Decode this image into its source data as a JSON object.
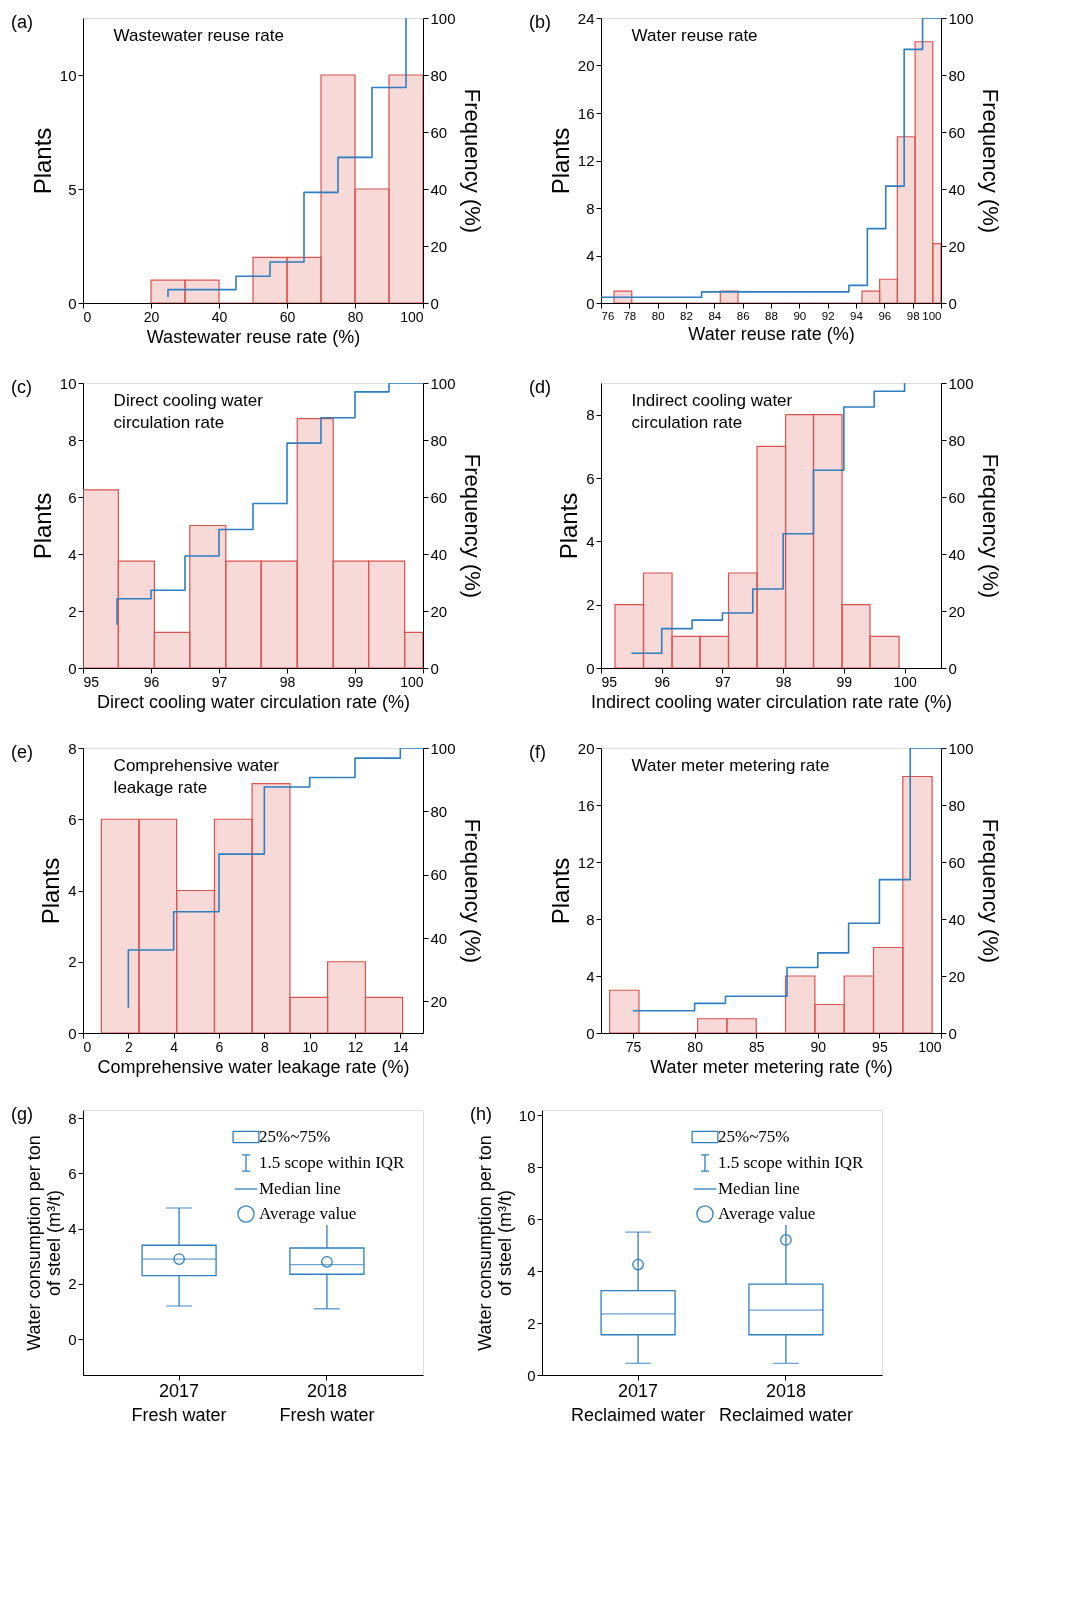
{
  "chart_data": [
    {
      "type": "histogram",
      "title": "Wastewater reuse rate",
      "xlabel": "Wastewater reuse rate (%)",
      "ylabel": "Plants",
      "y2label": "Frequency (%)",
      "annotations": [
        "(a)"
      ],
      "bins": [
        20,
        30,
        40,
        50,
        60,
        70,
        80,
        90,
        100
      ],
      "values": [
        1,
        1,
        0,
        2,
        2,
        10,
        5,
        10
      ],
      "color": "#d9534f",
      "xlim": [
        0,
        100
      ],
      "xticks": [
        0,
        20,
        40,
        60,
        80,
        100
      ],
      "ylim": [
        0,
        12.5
      ],
      "yticks": [
        0,
        5,
        10
      ],
      "y2lim": [
        0,
        100
      ],
      "y2ticks": [
        0,
        20,
        40,
        60,
        80,
        100
      ],
      "series": [
        {
          "type": "step",
          "axis": "y2",
          "color": "#2e7fc0",
          "x": [
            25,
            25,
            45,
            55,
            65,
            75,
            85,
            95
          ],
          "values": [
            2.1,
            4.7,
            9.4,
            14.4,
            38.8,
            51.1,
            75.6,
            100
          ]
        }
      ]
    },
    {
      "type": "histogram",
      "title": "Water reuse rate",
      "xlabel": "Water reuse rate (%)",
      "ylabel": "Plants",
      "y2label": "Frequency (%)",
      "annotations": [
        "(b)"
      ],
      "bins": [
        76.92,
        78.17,
        79.42,
        80.67,
        81.92,
        83.17,
        84.42,
        85.67,
        86.92,
        88.17,
        89.42,
        90.67,
        91.92,
        93.17,
        94.42,
        95.67,
        96.92,
        98.17,
        99.42,
        100
      ],
      "values": [
        1,
        0,
        0,
        0,
        0,
        0,
        1,
        0,
        0,
        0,
        0,
        0,
        0,
        0,
        1,
        2,
        14,
        22,
        5
      ],
      "color": "#d9534f",
      "xlim": [
        76,
        100
      ],
      "xticks": [
        76,
        78,
        80,
        82,
        84,
        86,
        88,
        90,
        92,
        94,
        96,
        98,
        100
      ],
      "ylim": [
        0,
        24
      ],
      "yticks": [
        0,
        4,
        8,
        12,
        16,
        20,
        24
      ],
      "y2lim": [
        0,
        100
      ],
      "y2ticks": [
        0,
        20,
        40,
        60,
        80,
        100
      ],
      "series": [
        {
          "type": "step",
          "axis": "y2",
          "color": "#2e7fc0",
          "x": [
            76,
            83.1,
            93.5,
            94.8,
            96.1,
            97.4,
            98.7,
            100
          ],
          "values": [
            2.0,
            3.9,
            6.2,
            26.1,
            41.0,
            89.0,
            100,
            100
          ]
        }
      ]
    },
    {
      "type": "histogram",
      "title": "Direct cooling water\ncirculation rate",
      "xlabel": "Direct cooling water circulation rate (%)",
      "ylabel": "Plants",
      "y2label": "Frequency (%)",
      "annotations": [
        "(c)"
      ],
      "bins": [
        95,
        95.52,
        96.05,
        96.57,
        97.1,
        97.62,
        98.15,
        98.68,
        99.2,
        99.73,
        100
      ],
      "values": [
        6.25,
        3.75,
        1.25,
        5,
        3.75,
        3.75,
        8.75,
        3.75,
        3.75,
        1.25
      ],
      "color": "#d9534f",
      "xlim": [
        95,
        100
      ],
      "xticks": [
        95,
        96,
        97,
        98,
        99,
        100
      ],
      "ylim": [
        0,
        10
      ],
      "yticks": [
        0,
        2,
        4,
        6,
        8,
        10
      ],
      "y2lim": [
        0,
        100
      ],
      "y2ticks": [
        0,
        20,
        40,
        60,
        80,
        100
      ],
      "series": [
        {
          "type": "step",
          "axis": "y2",
          "color": "#2e7fc0",
          "x": [
            95.5,
            95.5,
            96,
            96.5,
            97,
            97.5,
            98,
            98.5,
            99,
            99.5,
            100
          ],
          "values": [
            15.2,
            24.3,
            27.3,
            39.3,
            48.6,
            57.7,
            78.9,
            87.8,
            96.9,
            100,
            100
          ]
        }
      ]
    },
    {
      "type": "histogram",
      "title": "Indirect cooling water\ncirculation rate",
      "xlabel": "Indirect cooling water circulation rate rate (%)",
      "ylabel": "Plants",
      "y2label": "Frequency (%)",
      "annotations": [
        "(d)"
      ],
      "bins": [
        95.23,
        95.7,
        96.17,
        96.63,
        97.1,
        97.57,
        98.04,
        98.5,
        98.97,
        99.43,
        99.91
      ],
      "values": [
        2,
        3,
        1,
        1,
        3,
        7,
        8,
        8,
        2,
        1
      ],
      "color": "#d9534f",
      "xlim": [
        95,
        100.6
      ],
      "xticks": [
        95,
        96,
        97,
        98,
        99,
        100
      ],
      "ylim": [
        0,
        9
      ],
      "yticks": [
        0,
        2,
        4,
        6,
        8
      ],
      "y2lim": [
        0,
        100
      ],
      "y2ticks": [
        0,
        20,
        40,
        60,
        80,
        100
      ],
      "series": [
        {
          "type": "step",
          "axis": "y2",
          "color": "#2e7fc0",
          "x": [
            95.5,
            96,
            96.5,
            97,
            97.5,
            98,
            98.5,
            99,
            99.5,
            100
          ],
          "values": [
            5.2,
            13.8,
            16.8,
            19.3,
            27.7,
            47.1,
            69.4,
            91.6,
            97.1,
            100
          ]
        }
      ]
    },
    {
      "type": "histogram",
      "title": "Comprehensive water\nleakage rate",
      "xlabel": "Comprehensive water leakage rate (%)",
      "ylabel": "Plants",
      "y2label": "Frequency (%)",
      "annotations": [
        "(e)"
      ],
      "bins": [
        0.81,
        2.47,
        4.13,
        5.8,
        7.46,
        9.13,
        10.79,
        12.46,
        14.1
      ],
      "values": [
        6,
        6,
        4,
        6,
        7,
        1,
        2,
        1
      ],
      "color": "#d9534f",
      "xlim": [
        0,
        15
      ],
      "xticks": [
        0,
        2,
        4,
        6,
        8,
        10,
        12,
        14
      ],
      "ylim": [
        0,
        8
      ],
      "yticks": [
        0,
        2,
        4,
        6,
        8
      ],
      "y2lim": [
        10,
        100
      ],
      "y2ticks": [
        20,
        40,
        60,
        80,
        100
      ],
      "series": [
        {
          "type": "step",
          "axis": "y2",
          "color": "#2e7fc0",
          "x": [
            2,
            2,
            4,
            6,
            8,
            10,
            12,
            14,
            15
          ],
          "values": [
            18.0,
            36.2,
            48.3,
            66.5,
            87.7,
            90.7,
            96.8,
            100,
            100
          ]
        }
      ]
    },
    {
      "type": "histogram",
      "title": "Water meter metering rate",
      "xlabel": "Water meter metering rate (%)",
      "ylabel": "Plants",
      "y2label": "Frequency (%)",
      "annotations": [
        "(f)"
      ],
      "bins": [
        73.1,
        75.48,
        77.86,
        80.24,
        82.62,
        85.0,
        87.38,
        89.76,
        92.14,
        94.52,
        96.9,
        99.28
      ],
      "values": [
        3,
        0,
        0,
        1,
        1,
        0,
        4,
        2,
        4,
        6,
        18
      ],
      "color": "#d9534f",
      "xlim": [
        72.4,
        100
      ],
      "xticks": [
        75,
        80,
        85,
        90,
        95,
        100
      ],
      "ylim": [
        0,
        20
      ],
      "yticks": [
        0,
        4,
        8,
        12,
        16,
        20
      ],
      "y2lim": [
        0,
        100
      ],
      "y2ticks": [
        0,
        20,
        40,
        60,
        80,
        100
      ],
      "series": [
        {
          "type": "step",
          "axis": "y2",
          "color": "#2e7fc0",
          "x": [
            75,
            80,
            82.5,
            87.5,
            90,
            92.5,
            95,
            97.5,
            100
          ],
          "values": [
            7.8,
            10.4,
            12.9,
            23.0,
            28.1,
            38.5,
            53.8,
            100,
            100
          ]
        }
      ]
    },
    {
      "type": "box",
      "ylabel": "Water consumption per ton\nof steel (m³/t)",
      "annotations": [
        "(g)",
        "25%~75%",
        "1.5 scope within IQR",
        "Median line",
        "Average value"
      ],
      "categories": [
        "2017\nFresh water",
        "2018\nFresh water"
      ],
      "color": "#2e7fc0",
      "ylim": [
        -1.3,
        8.3
      ],
      "yticks": [
        0,
        2,
        4,
        6,
        8
      ],
      "boxes": [
        {
          "low": 1.2,
          "q1": 2.3,
          "median": 2.9,
          "q3": 3.4,
          "high": 4.75,
          "mean": 2.9
        },
        {
          "low": 1.1,
          "q1": 2.35,
          "median": 2.7,
          "q3": 3.3,
          "high": 4.45,
          "mean": 2.8
        }
      ]
    },
    {
      "type": "box",
      "ylabel": "Water consumption per ton\nof steel (m³/t)",
      "annotations": [
        "(h)",
        "25%~75%",
        "1.5 scope within IQR",
        "Median line",
        "Average value"
      ],
      "categories": [
        "2017\nReclaimed water",
        "2018\nReclaimed water"
      ],
      "color": "#2e7fc0",
      "ylim": [
        0,
        10.2
      ],
      "yticks": [
        0,
        2,
        4,
        6,
        8,
        10
      ],
      "boxes": [
        {
          "low": 0.45,
          "q1": 1.55,
          "median": 2.35,
          "q3": 3.25,
          "high": 5.5,
          "mean": 4.25
        },
        {
          "low": 0.45,
          "q1": 1.55,
          "median": 2.5,
          "q3": 3.5,
          "high": 6.3,
          "mean": 5.2
        }
      ]
    }
  ]
}
